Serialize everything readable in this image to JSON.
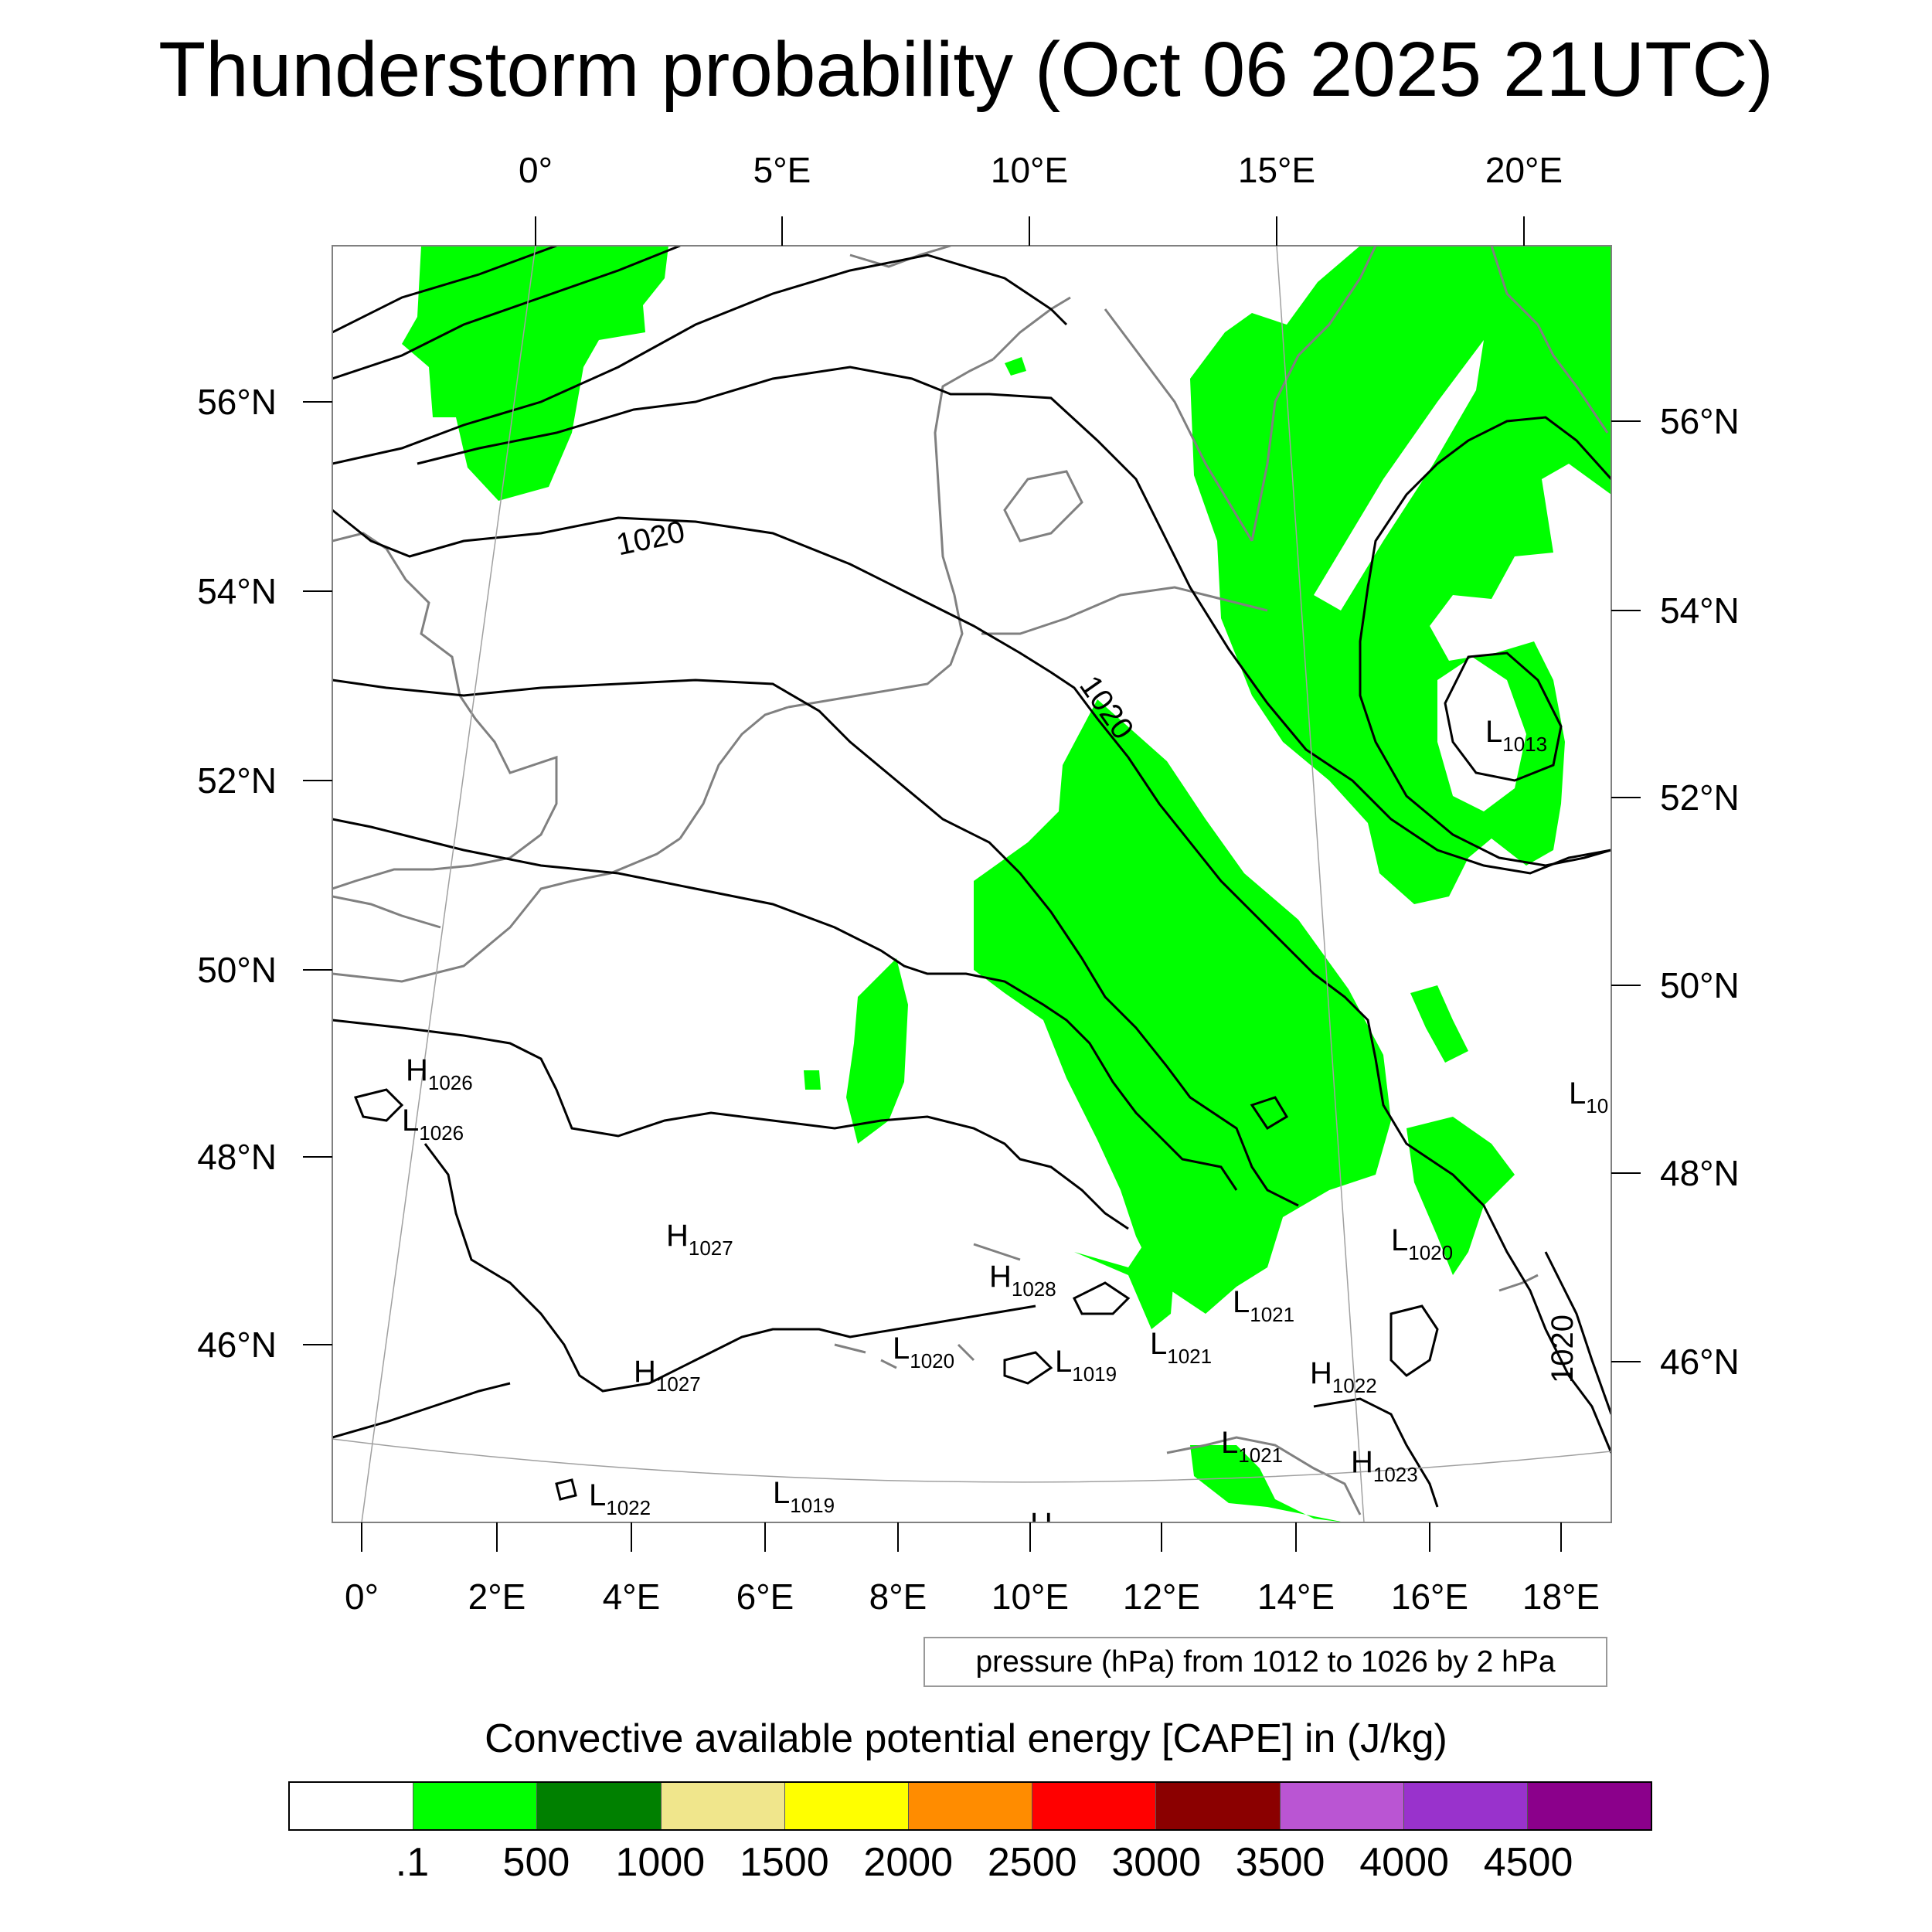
{
  "title": "Thunderstorm probability (Oct 06 2025 21UTC)",
  "top_lon_labels": [
    "0°",
    "5°E",
    "10°E",
    "15°E",
    "20°E"
  ],
  "bottom_lon_labels": [
    "0°",
    "2°E",
    "4°E",
    "6°E",
    "8°E",
    "10°E",
    "12°E",
    "14°E",
    "16°E",
    "18°E"
  ],
  "left_lat_labels": [
    "56°N",
    "54°N",
    "52°N",
    "50°N",
    "48°N",
    "46°N"
  ],
  "right_lat_labels": [
    "56°N",
    "54°N",
    "52°N",
    "50°N",
    "48°N",
    "46°N"
  ],
  "contour_labels": [
    "1020",
    "1020",
    "1020"
  ],
  "pressure_centers": [
    {
      "letter": "H",
      "value": "1026"
    },
    {
      "letter": "L",
      "value": "1026"
    },
    {
      "letter": "H",
      "value": "1027"
    },
    {
      "letter": "H",
      "value": "1028"
    },
    {
      "letter": "L",
      "value": "1021"
    },
    {
      "letter": "L",
      "value": "1020"
    },
    {
      "letter": "L",
      "value": "1019"
    },
    {
      "letter": "L",
      "value": "1021"
    },
    {
      "letter": "H",
      "value": "1022"
    },
    {
      "letter": "H",
      "value": "1027"
    },
    {
      "letter": "L",
      "value": "1021"
    },
    {
      "letter": "H",
      "value": "1023"
    },
    {
      "letter": "L",
      "value": "1022"
    },
    {
      "letter": "L",
      "value": "1019"
    },
    {
      "letter": "L",
      "value": "1020"
    },
    {
      "letter": "L",
      "value": "1013"
    },
    {
      "letter": "L",
      "value": "10"
    },
    {
      "letter": "H",
      "value": ""
    }
  ],
  "pressure_info": "pressure (hPa) from 1012 to 1026 by 2 hPa",
  "legend": {
    "title": "Convective available potential energy [CAPE] in (J/kg)",
    "labels": [
      ".1",
      "500",
      "1000",
      "1500",
      "2000",
      "2500",
      "3000",
      "3500",
      "4000",
      "4500"
    ],
    "colors": [
      "#ffffff",
      "#00ff00",
      "#008000",
      "#f0e68c",
      "#ffff00",
      "#ff8c00",
      "#ff0000",
      "#8b0000",
      "#ba55d3",
      "#9932cc",
      "#8b008b"
    ]
  },
  "colors": {
    "cape_fill": "#00ff00",
    "isobar": "#000000",
    "coastline": "#808080",
    "graticule": "#a0a0a0"
  }
}
